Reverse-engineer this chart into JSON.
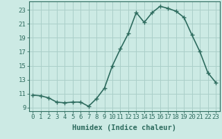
{
  "x": [
    0,
    1,
    2,
    3,
    4,
    5,
    6,
    7,
    8,
    9,
    10,
    11,
    12,
    13,
    14,
    15,
    16,
    17,
    18,
    19,
    20,
    21,
    22,
    23
  ],
  "y": [
    10.8,
    10.7,
    10.4,
    9.8,
    9.7,
    9.8,
    9.8,
    9.2,
    10.3,
    11.8,
    15.0,
    17.4,
    19.6,
    22.6,
    21.2,
    22.6,
    23.5,
    23.2,
    22.8,
    21.9,
    19.4,
    17.0,
    14.0,
    12.6
  ],
  "line_color": "#2d6b5e",
  "marker": "+",
  "marker_size": 4,
  "bg_color": "#cceae4",
  "grid_color": "#aacfc9",
  "xlabel": "Humidex (Indice chaleur)",
  "xlim": [
    -0.5,
    23.5
  ],
  "ylim": [
    8.5,
    24.2
  ],
  "yticks": [
    9,
    11,
    13,
    15,
    17,
    19,
    21,
    23
  ],
  "xticks": [
    0,
    1,
    2,
    3,
    4,
    5,
    6,
    7,
    8,
    9,
    10,
    11,
    12,
    13,
    14,
    15,
    16,
    17,
    18,
    19,
    20,
    21,
    22,
    23
  ],
  "tick_label_size": 6.5,
  "xlabel_size": 7.5,
  "line_width": 1.2,
  "marker_edge_width": 1.0
}
